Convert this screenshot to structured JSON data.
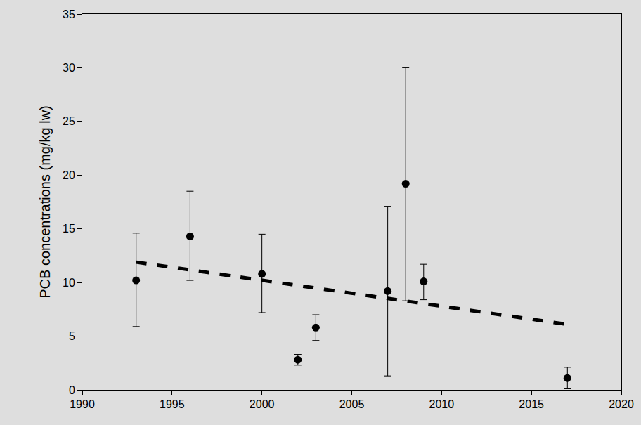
{
  "chart_data": {
    "type": "scatter",
    "y_label": "PCB concentrations (mg/kg lw)",
    "xlim": [
      1990,
      2020
    ],
    "xticks": [
      1990,
      1995,
      2000,
      2005,
      2010,
      2015,
      2020
    ],
    "ylim": [
      0,
      35
    ],
    "yticks": [
      0,
      5,
      10,
      15,
      20,
      25,
      30,
      35
    ],
    "grid": false,
    "series": [
      {
        "type": "scatter",
        "color": "#000000",
        "marker": "circle",
        "x": [
          1993,
          1996,
          2000,
          2002,
          2003,
          2007,
          2008,
          2009,
          2017
        ],
        "values": [
          10.2,
          14.3,
          10.8,
          2.8,
          5.8,
          9.2,
          19.2,
          10.1,
          1.1
        ],
        "error_plus": [
          4.4,
          4.2,
          3.7,
          0.5,
          1.2,
          7.9,
          10.8,
          1.6,
          1.0
        ],
        "error_minus": [
          4.3,
          4.1,
          3.6,
          0.5,
          1.2,
          7.9,
          10.9,
          1.7,
          1.0
        ]
      },
      {
        "type": "line",
        "color": "#000000",
        "line_style": "dashed",
        "x": [
          1993,
          2017
        ],
        "values": [
          11.9,
          6.1
        ]
      }
    ]
  }
}
